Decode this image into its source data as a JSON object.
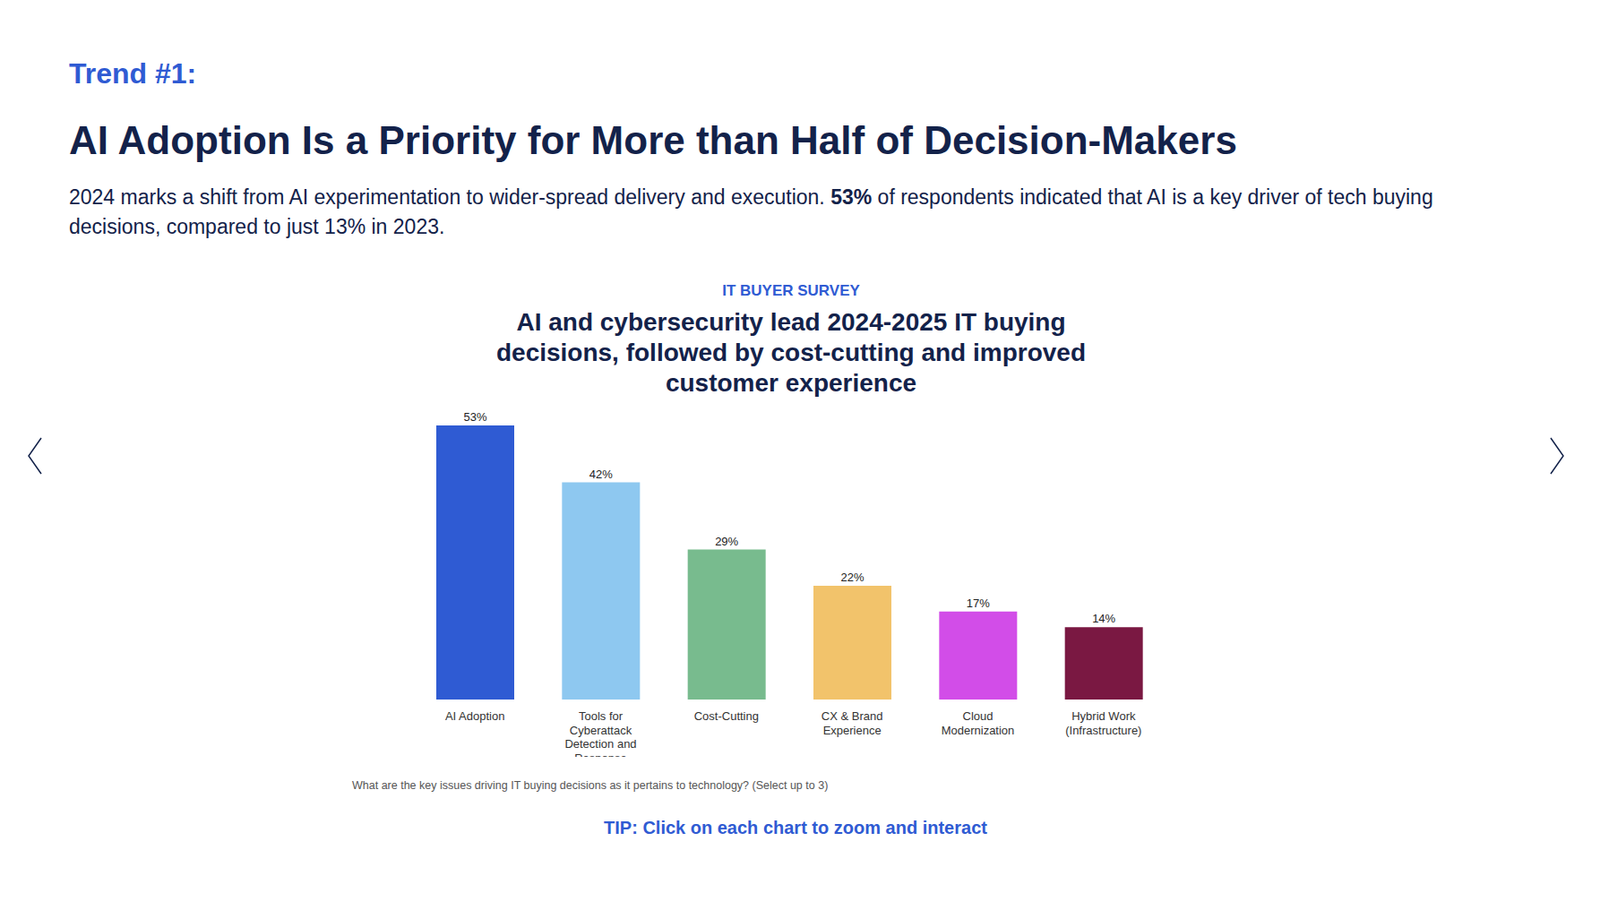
{
  "page": {
    "trend": "Trend #1:",
    "heading": "AI Adoption Is a Priority for More than Half of Decision-Makers",
    "intro": [
      {
        "text": "2024 marks a shift from AI experimentation to wider-spread delivery and execution. ",
        "bold": false
      },
      {
        "text": "53%",
        "bold": true
      },
      {
        "text": " of respondents indicated that AI is a key driver of tech buying decisions, compared to just 13% in 2023.",
        "bold": false
      }
    ],
    "survey_label": "IT BUYER SURVEY",
    "tip": "TIP: Click on each chart to zoom and interact"
  },
  "chart_data": {
    "type": "bar",
    "title": "AI and cybersecurity lead 2024-2025 IT buying decisions, followed by cost-cutting and improved customer experience",
    "categories": [
      "AI Adoption",
      "Tools for Cyberattack Detection and Response",
      "Cost-Cutting",
      "CX & Brand Experience",
      "Cloud Modernization",
      "Hybrid Work (Infrastructure)"
    ],
    "values": [
      53,
      42,
      29,
      22,
      17,
      14
    ],
    "value_labels": [
      "53%",
      "42%",
      "29%",
      "22%",
      "17%",
      "14%"
    ],
    "colors": [
      "#2f5bd3",
      "#8ec8f0",
      "#78bb8e",
      "#f2c36b",
      "#d24de8",
      "#7a1842"
    ],
    "ylim": [
      0,
      53
    ],
    "grid": false,
    "data_labels": true,
    "tick_labels": "x",
    "caption": "What are the key issues driving IT buying decisions as it pertains to technology? (Select up to 3)"
  }
}
